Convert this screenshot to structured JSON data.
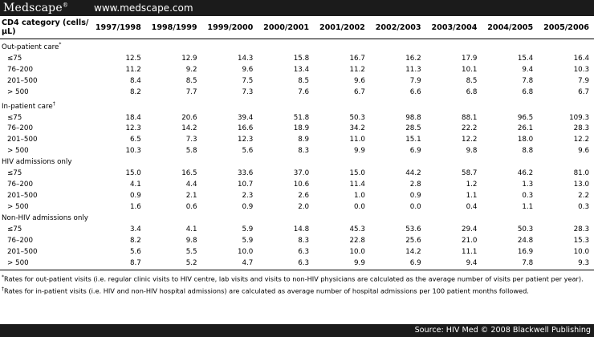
{
  "header": {
    "brand": "Medscape",
    "brand_mark": "®",
    "url": "www.medscape.com"
  },
  "table": {
    "columns": [
      "CD4 category (cells/µL)",
      "1997/1998",
      "1998/1999",
      "1999/2000",
      "2000/2001",
      "2001/2002",
      "2002/2003",
      "2003/2004",
      "2004/2005",
      "2005/2006"
    ],
    "rows": [
      {
        "type": "section",
        "label": "Out-patient care",
        "sup": "*"
      },
      {
        "type": "data",
        "label": "≤75",
        "values": [
          "12.5",
          "12.9",
          "14.3",
          "15.8",
          "16.7",
          "16.2",
          "17.9",
          "15.4",
          "16.4"
        ]
      },
      {
        "type": "data",
        "label": "76–200",
        "values": [
          "11.2",
          "9.2",
          "9.6",
          "13.4",
          "11.2",
          "11.3",
          "10.1",
          "9.4",
          "10.3"
        ]
      },
      {
        "type": "data",
        "label": "201–500",
        "values": [
          "8.4",
          "8.5",
          "7.5",
          "8.5",
          "9.6",
          "7.9",
          "8.5",
          "7.8",
          "7.9"
        ]
      },
      {
        "type": "data",
        "label": "> 500",
        "values": [
          "8.2",
          "7.7",
          "7.3",
          "7.6",
          "6.7",
          "6.6",
          "6.8",
          "6.8",
          "6.7"
        ]
      },
      {
        "type": "section",
        "label": "In-patient care",
        "sup": "†"
      },
      {
        "type": "data",
        "label": "≤75",
        "values": [
          "18.4",
          "20.6",
          "39.4",
          "51.8",
          "50.3",
          "98.8",
          "88.1",
          "96.5",
          "109.3"
        ]
      },
      {
        "type": "data",
        "label": "76–200",
        "values": [
          "12.3",
          "14.2",
          "16.6",
          "18.9",
          "34.2",
          "28.5",
          "22.2",
          "26.1",
          "28.3"
        ]
      },
      {
        "type": "data",
        "label": "201–500",
        "values": [
          "6.5",
          "7.3",
          "12.3",
          "8.9",
          "11.0",
          "15.1",
          "12.2",
          "18.0",
          "12.2"
        ]
      },
      {
        "type": "data",
        "label": "> 500",
        "values": [
          "10.3",
          "5.8",
          "5.6",
          "8.3",
          "9.9",
          "6.9",
          "9.8",
          "8.8",
          "9.6"
        ]
      },
      {
        "type": "section",
        "label": "HIV admissions only",
        "sup": ""
      },
      {
        "type": "data",
        "label": "≤75",
        "values": [
          "15.0",
          "16.5",
          "33.6",
          "37.0",
          "15.0",
          "44.2",
          "58.7",
          "46.2",
          "81.0"
        ]
      },
      {
        "type": "data",
        "label": "76–200",
        "values": [
          "4.1",
          "4.4",
          "10.7",
          "10.6",
          "11.4",
          "2.8",
          "1.2",
          "1.3",
          "13.0"
        ]
      },
      {
        "type": "data",
        "label": "201–500",
        "values": [
          "0.9",
          "2.1",
          "2.3",
          "2.6",
          "1.0",
          "0.9",
          "1.1",
          "0.3",
          "2.2"
        ]
      },
      {
        "type": "data",
        "label": "> 500",
        "values": [
          "1.6",
          "0.6",
          "0.9",
          "2.0",
          "0.0",
          "0.0",
          "0.4",
          "1.1",
          "0.3"
        ]
      },
      {
        "type": "section",
        "label": "Non-HIV admissions only",
        "sup": ""
      },
      {
        "type": "data",
        "label": "≤75",
        "values": [
          "3.4",
          "4.1",
          "5.9",
          "14.8",
          "45.3",
          "53.6",
          "29.4",
          "50.3",
          "28.3"
        ]
      },
      {
        "type": "data",
        "label": "76–200",
        "values": [
          "8.2",
          "9.8",
          "5.9",
          "8.3",
          "22.8",
          "25.6",
          "21.0",
          "24.8",
          "15.3"
        ]
      },
      {
        "type": "data",
        "label": "201–500",
        "values": [
          "5.6",
          "5.5",
          "10.0",
          "6.3",
          "10.0",
          "14.2",
          "11.1",
          "16.9",
          "10.0"
        ]
      },
      {
        "type": "data",
        "label": "> 500",
        "values": [
          "8.7",
          "5.2",
          "4.7",
          "6.3",
          "9.9",
          "6.9",
          "9.4",
          "7.8",
          "9.3"
        ]
      }
    ]
  },
  "footnotes": [
    {
      "mark": "*",
      "text": "Rates for out-patient visits (i.e. regular clinic visits to HIV centre, lab visits and visits to non-HIV physicians are calculated as the average number of visits per patient per year)."
    },
    {
      "mark": "†",
      "text": "Rates for in-patient visits (i.e. HIV and non-HIV hospital admissions) are calculated as average number of hospital admissions per 100 patient months followed."
    }
  ],
  "source": "Source: HIV Med © 2008 Blackwell Publishing"
}
